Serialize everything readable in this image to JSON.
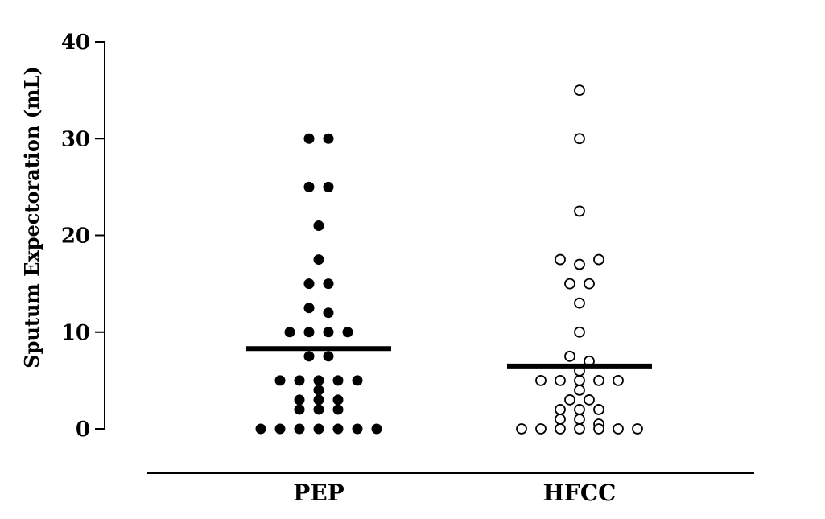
{
  "chart_data": {
    "type": "scatter",
    "title": "",
    "xlabel": "",
    "ylabel": "Sputum Expectoration (mL)",
    "ylim": [
      0,
      40
    ],
    "yticks": [
      0,
      10,
      20,
      30,
      40
    ],
    "grid": false,
    "categories": [
      "PEP",
      "HFCC"
    ],
    "series": [
      {
        "category": "PEP",
        "marker": "filled-circle",
        "color": "#000000",
        "mean": 8.3,
        "values": [
          30,
          30,
          25,
          25,
          21,
          17.5,
          15,
          15,
          12.5,
          12,
          10,
          10,
          10,
          10,
          7.5,
          7.5,
          5,
          5,
          4,
          5,
          5,
          5,
          3,
          3,
          3,
          2,
          2,
          2,
          0,
          0,
          0,
          0,
          0,
          0,
          0
        ]
      },
      {
        "category": "HFCC",
        "marker": "open-circle",
        "color": "#000000",
        "mean": 6.5,
        "values": [
          35,
          30,
          22.5,
          17.5,
          17,
          17.5,
          15,
          15,
          13,
          10,
          7.5,
          7,
          6,
          5,
          5,
          5,
          5,
          5,
          4,
          3,
          3,
          2,
          2,
          2,
          1,
          1,
          0,
          0,
          0,
          0,
          0,
          0,
          0,
          0.5
        ]
      }
    ]
  }
}
